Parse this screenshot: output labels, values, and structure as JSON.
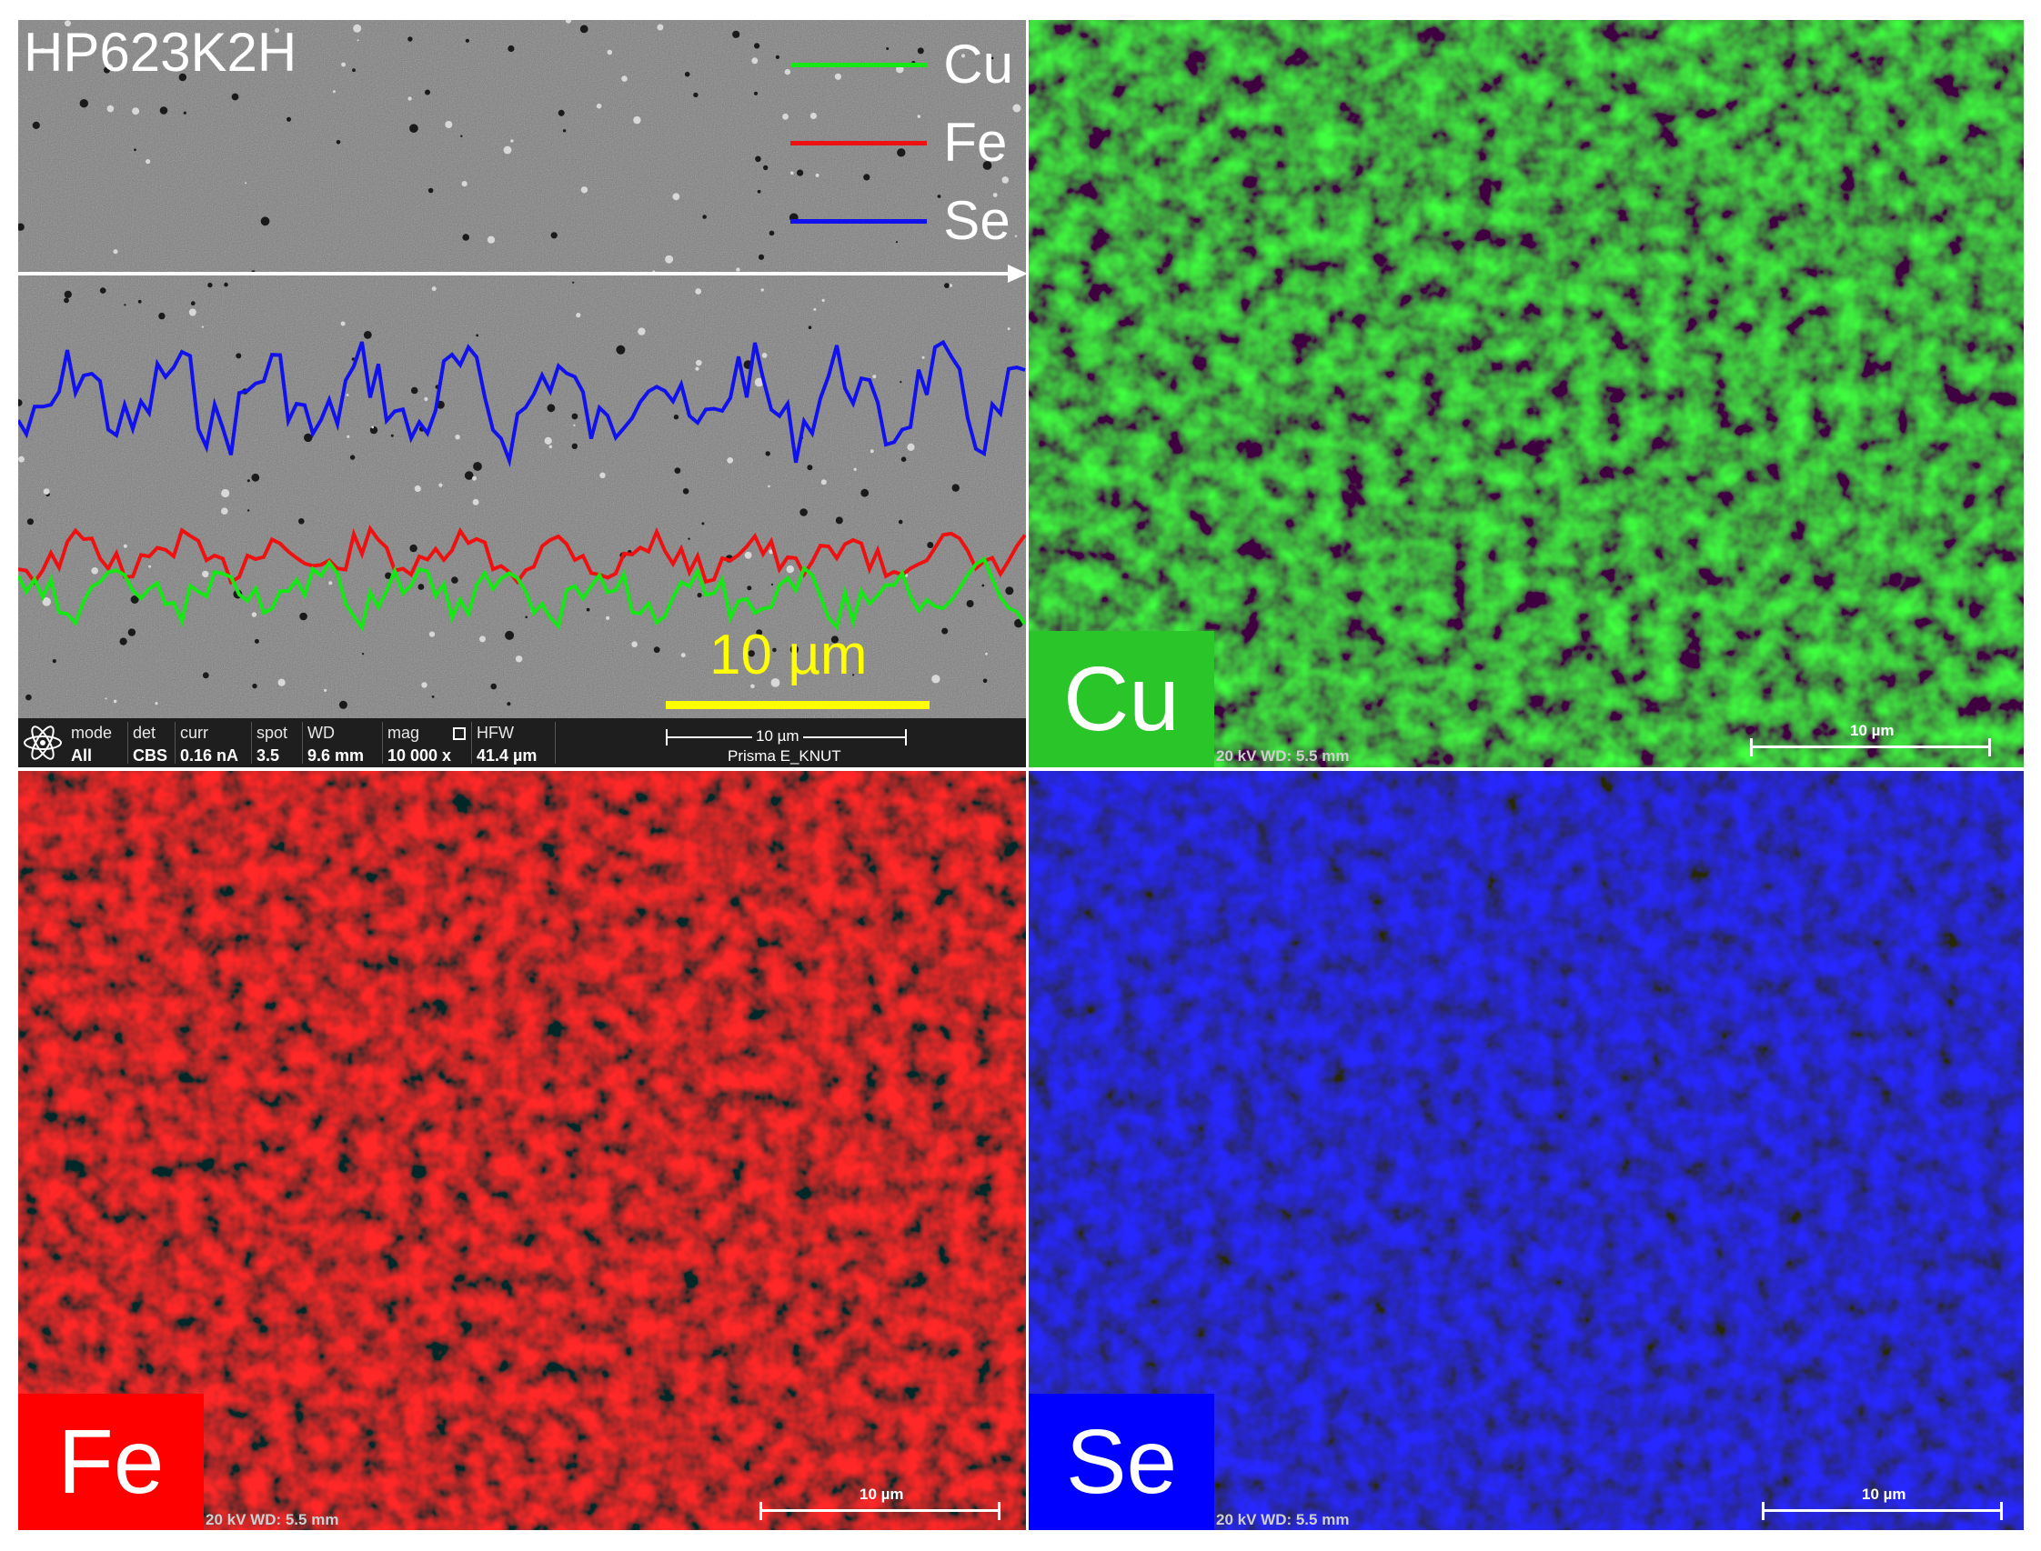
{
  "colors": {
    "cu": "#29c529",
    "fe": "#ee0000",
    "se": "#0000ee",
    "scale_yellow": "#ffff00"
  },
  "sem": {
    "sample_label": "HP623K2H",
    "legend": [
      {
        "label": "Cu",
        "color": "#17e617"
      },
      {
        "label": "Fe",
        "color": "#ee1111"
      },
      {
        "label": "Se",
        "color": "#1111ee"
      }
    ],
    "scale_label": "10 µm",
    "databar": {
      "logo_icon": "atom-icon",
      "fields": [
        {
          "header": "mode",
          "value": "All"
        },
        {
          "header": "det",
          "value": "CBS"
        },
        {
          "header": "curr",
          "value": "0.16 nA"
        },
        {
          "header": "spot",
          "value": "3.5"
        },
        {
          "header": "WD",
          "value": "9.6 mm"
        },
        {
          "header": "mag",
          "value": "10 000 x"
        },
        {
          "header": "HFW",
          "value": "41.4 µm"
        }
      ],
      "scale_label": "10 µm",
      "instrument": "Prisma E_KNUT"
    }
  },
  "maps": {
    "cu": {
      "element": "Cu",
      "scale_label": "10 µm",
      "info": "20 kV   WD: 5.5 mm"
    },
    "fe": {
      "element": "Fe",
      "scale_label": "10 µm",
      "info": "20 kV   WD: 5.5 mm"
    },
    "se": {
      "element": "Se",
      "scale_label": "10 µm",
      "info": "20 kV   WD: 5.5 mm"
    }
  }
}
